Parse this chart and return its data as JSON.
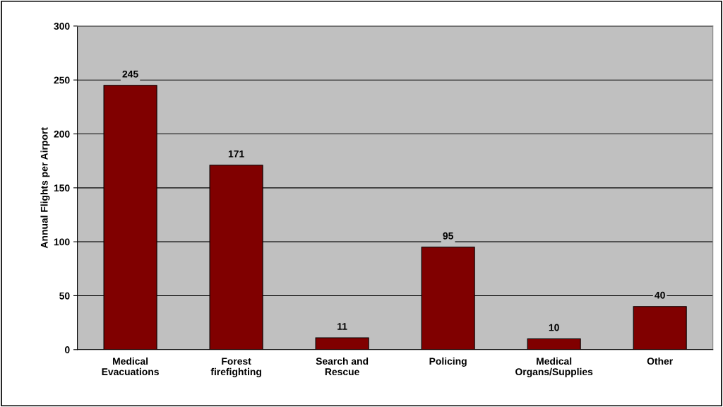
{
  "chart_data": {
    "type": "bar",
    "ylabel": "Annual Flights per Airport",
    "categories": [
      "Medical\nEvacuations",
      "Forest\nfirefighting",
      "Search and\nRescue",
      "Policing",
      "Medical\nOrgans/Supplies",
      "Other"
    ],
    "values": [
      245,
      171,
      11,
      95,
      10,
      40
    ],
    "color": "#800000",
    "ylim": [
      0,
      300
    ],
    "yticks": [
      0,
      50,
      100,
      150,
      200,
      250,
      300
    ],
    "grid": "y",
    "data_labels": true
  }
}
